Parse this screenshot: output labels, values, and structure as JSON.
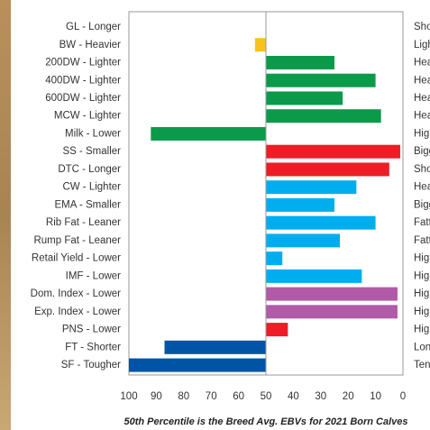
{
  "chart_data": {
    "type": "bar",
    "orientation": "horizontal",
    "caption": "50th Percentile is the Breed Avg. EBVs for 2021 Born Calves",
    "categories": [
      "GL - Longer",
      "BW - Heavier",
      "200DW - Lighter",
      "400DW - Lighter",
      "600DW - Lighter",
      "MCW - Lighter",
      "Milk - Lower",
      "SS - Smaller",
      "DTC - Longer",
      "CW - Lighter",
      "EMA - Smaller",
      "Rib Fat - Leaner",
      "Rump Fat - Leaner",
      "Retail Yield - Lower",
      "IMF - Lower",
      "Dom. Index - Lower",
      "Exp. Index - Lower",
      "PNS - Lower",
      "FT - Shorter",
      "SF - Tougher"
    ],
    "right_labels": [
      "Sho",
      "Ligh",
      "Hea",
      "Hea",
      "Hea",
      "Hea",
      "High",
      "Bigg",
      "Sho",
      "Hea",
      "Bigg",
      "Fatt",
      "Fatt",
      "High",
      "High",
      "High",
      "High",
      "High",
      "Lon",
      "Ten"
    ],
    "values": [
      null,
      54,
      25,
      10,
      22,
      8,
      92,
      1,
      5,
      17,
      25,
      10,
      23,
      44,
      15,
      2,
      2,
      42,
      87,
      100
    ],
    "colors": [
      "#0a9a4a",
      "#f7c31b",
      "#0a9a4a",
      "#0a9a4a",
      "#0a9a4a",
      "#0a9a4a",
      "#0a9a4a",
      "#ee1c25",
      "#ee1c25",
      "#00aeef",
      "#00aeef",
      "#00aeef",
      "#00aeef",
      "#00aeef",
      "#00aeef",
      "#b05aa8",
      "#b05aa8",
      "#ee1c25",
      "#0054a6",
      "#0054a6"
    ],
    "baseline": 50,
    "xlim": [
      100,
      0
    ],
    "xticks": [
      100,
      90,
      80,
      70,
      60,
      50,
      40,
      30,
      20,
      10,
      0
    ]
  }
}
